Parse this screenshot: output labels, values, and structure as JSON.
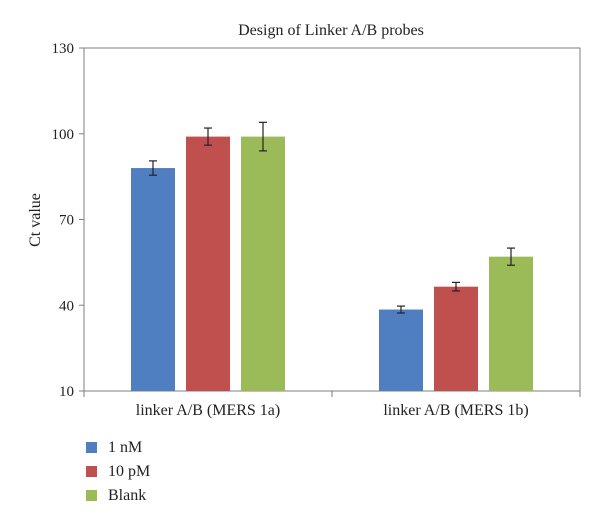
{
  "chart_data": {
    "type": "bar",
    "title": "Design of Linker A/B probes",
    "xlabel": "",
    "ylabel": "Ct value",
    "ylim": [
      10,
      130
    ],
    "yticks": [
      10,
      40,
      70,
      100,
      130
    ],
    "categories": [
      "linker A/B (MERS 1a)",
      "linker A/B (MERS 1b)"
    ],
    "series": [
      {
        "name": "1 nM",
        "color": "#4f7fc0",
        "values": [
          88,
          38.5
        ],
        "errors": [
          2.5,
          1.2
        ]
      },
      {
        "name": "10 pM",
        "color": "#c0504d",
        "values": [
          99,
          46.5
        ],
        "errors": [
          3,
          1.5
        ]
      },
      {
        "name": "Blank",
        "color": "#9bbb59",
        "values": [
          99,
          57
        ],
        "errors": [
          5,
          3
        ]
      }
    ],
    "grid": false,
    "legend_position": "bottom-left"
  }
}
